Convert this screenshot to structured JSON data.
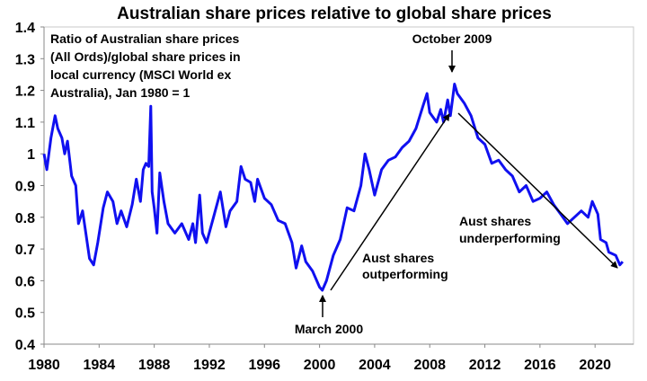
{
  "chart_data": {
    "type": "line",
    "title": "Australian share prices relative to global share prices",
    "xlabel": "",
    "ylabel": "",
    "xlim": [
      1980,
      2023
    ],
    "ylim": [
      0.4,
      1.4
    ],
    "x_ticks": [
      "1980",
      "1984",
      "1988",
      "1992",
      "1996",
      "2000",
      "2004",
      "2008",
      "2012",
      "2016",
      "2020"
    ],
    "y_ticks": [
      "0.4",
      "0.5",
      "0.6",
      "0.7",
      "0.8",
      "0.9",
      "1",
      "1.1",
      "1.2",
      "1.3",
      "1.4"
    ],
    "grid": false,
    "line_color": "#1010f0",
    "series": [
      {
        "name": "Ratio of Australian share prices (All Ords)/global share prices in local currency (MSCI World ex Australia), Jan 1980 = 1",
        "x": [
          1980,
          1980.2,
          1980.5,
          1980.8,
          1981,
          1981.3,
          1981.5,
          1981.7,
          1982,
          1982.3,
          1982.5,
          1982.8,
          1983,
          1983.3,
          1983.6,
          1983.9,
          1984.3,
          1984.6,
          1985,
          1985.3,
          1985.6,
          1986,
          1986.4,
          1986.7,
          1987,
          1987.2,
          1987.4,
          1987.6,
          1987.75,
          1987.85,
          1988,
          1988.2,
          1988.4,
          1988.7,
          1989,
          1989.5,
          1990,
          1990.5,
          1990.8,
          1991,
          1991.3,
          1991.5,
          1991.8,
          1992.3,
          1992.8,
          1993.2,
          1993.5,
          1994,
          1994.3,
          1994.6,
          1995,
          1995.3,
          1995.5,
          1996,
          1996.5,
          1997,
          1997.5,
          1998,
          1998.3,
          1998.7,
          1999,
          1999.5,
          2000,
          2000.2,
          2000.5,
          2001,
          2001.5,
          2002,
          2002.5,
          2003,
          2003.3,
          2003.6,
          2004,
          2004.5,
          2005,
          2005.5,
          2006,
          2006.5,
          2007,
          2007.5,
          2007.8,
          2008,
          2008.5,
          2008.8,
          2009,
          2009.3,
          2009.5,
          2009.8,
          2010,
          2010.5,
          2011,
          2011.5,
          2012,
          2012.5,
          2013,
          2013.5,
          2014,
          2014.5,
          2015,
          2015.5,
          2016,
          2016.5,
          2017,
          2017.5,
          2018,
          2018.5,
          2019,
          2019.5,
          2019.8,
          2020.2,
          2020.4,
          2020.8,
          2021,
          2021.5,
          2021.8,
          2022
        ],
        "values": [
          1.0,
          0.95,
          1.05,
          1.12,
          1.08,
          1.05,
          1.0,
          1.04,
          0.93,
          0.9,
          0.78,
          0.82,
          0.76,
          0.67,
          0.65,
          0.72,
          0.83,
          0.88,
          0.85,
          0.78,
          0.82,
          0.77,
          0.84,
          0.92,
          0.85,
          0.95,
          0.97,
          0.96,
          1.15,
          0.88,
          0.83,
          0.75,
          0.94,
          0.85,
          0.78,
          0.75,
          0.78,
          0.73,
          0.78,
          0.72,
          0.87,
          0.75,
          0.72,
          0.8,
          0.88,
          0.77,
          0.82,
          0.85,
          0.96,
          0.92,
          0.91,
          0.85,
          0.92,
          0.86,
          0.84,
          0.79,
          0.78,
          0.72,
          0.64,
          0.71,
          0.66,
          0.63,
          0.58,
          0.57,
          0.6,
          0.68,
          0.73,
          0.83,
          0.82,
          0.9,
          1.0,
          0.95,
          0.87,
          0.95,
          0.98,
          0.99,
          1.02,
          1.04,
          1.08,
          1.15,
          1.19,
          1.13,
          1.1,
          1.14,
          1.1,
          1.17,
          1.12,
          1.22,
          1.19,
          1.16,
          1.12,
          1.05,
          1.03,
          0.97,
          0.98,
          0.95,
          0.93,
          0.88,
          0.9,
          0.85,
          0.86,
          0.88,
          0.84,
          0.81,
          0.78,
          0.8,
          0.82,
          0.8,
          0.85,
          0.81,
          0.73,
          0.72,
          0.69,
          0.68,
          0.65,
          0.66
        ]
      }
    ],
    "legend_text": [
      "Ratio of Australian share prices",
      "(All Ords)/global share prices in",
      "local currency (MSCI World ex",
      "Australia), Jan 1980 = 1"
    ],
    "annotations": {
      "peak": "October 2009",
      "trough": "March 2000",
      "outperform": [
        "Aust shares",
        "outperforming"
      ],
      "underperform": [
        "Aust shares",
        "underperforming"
      ]
    }
  }
}
